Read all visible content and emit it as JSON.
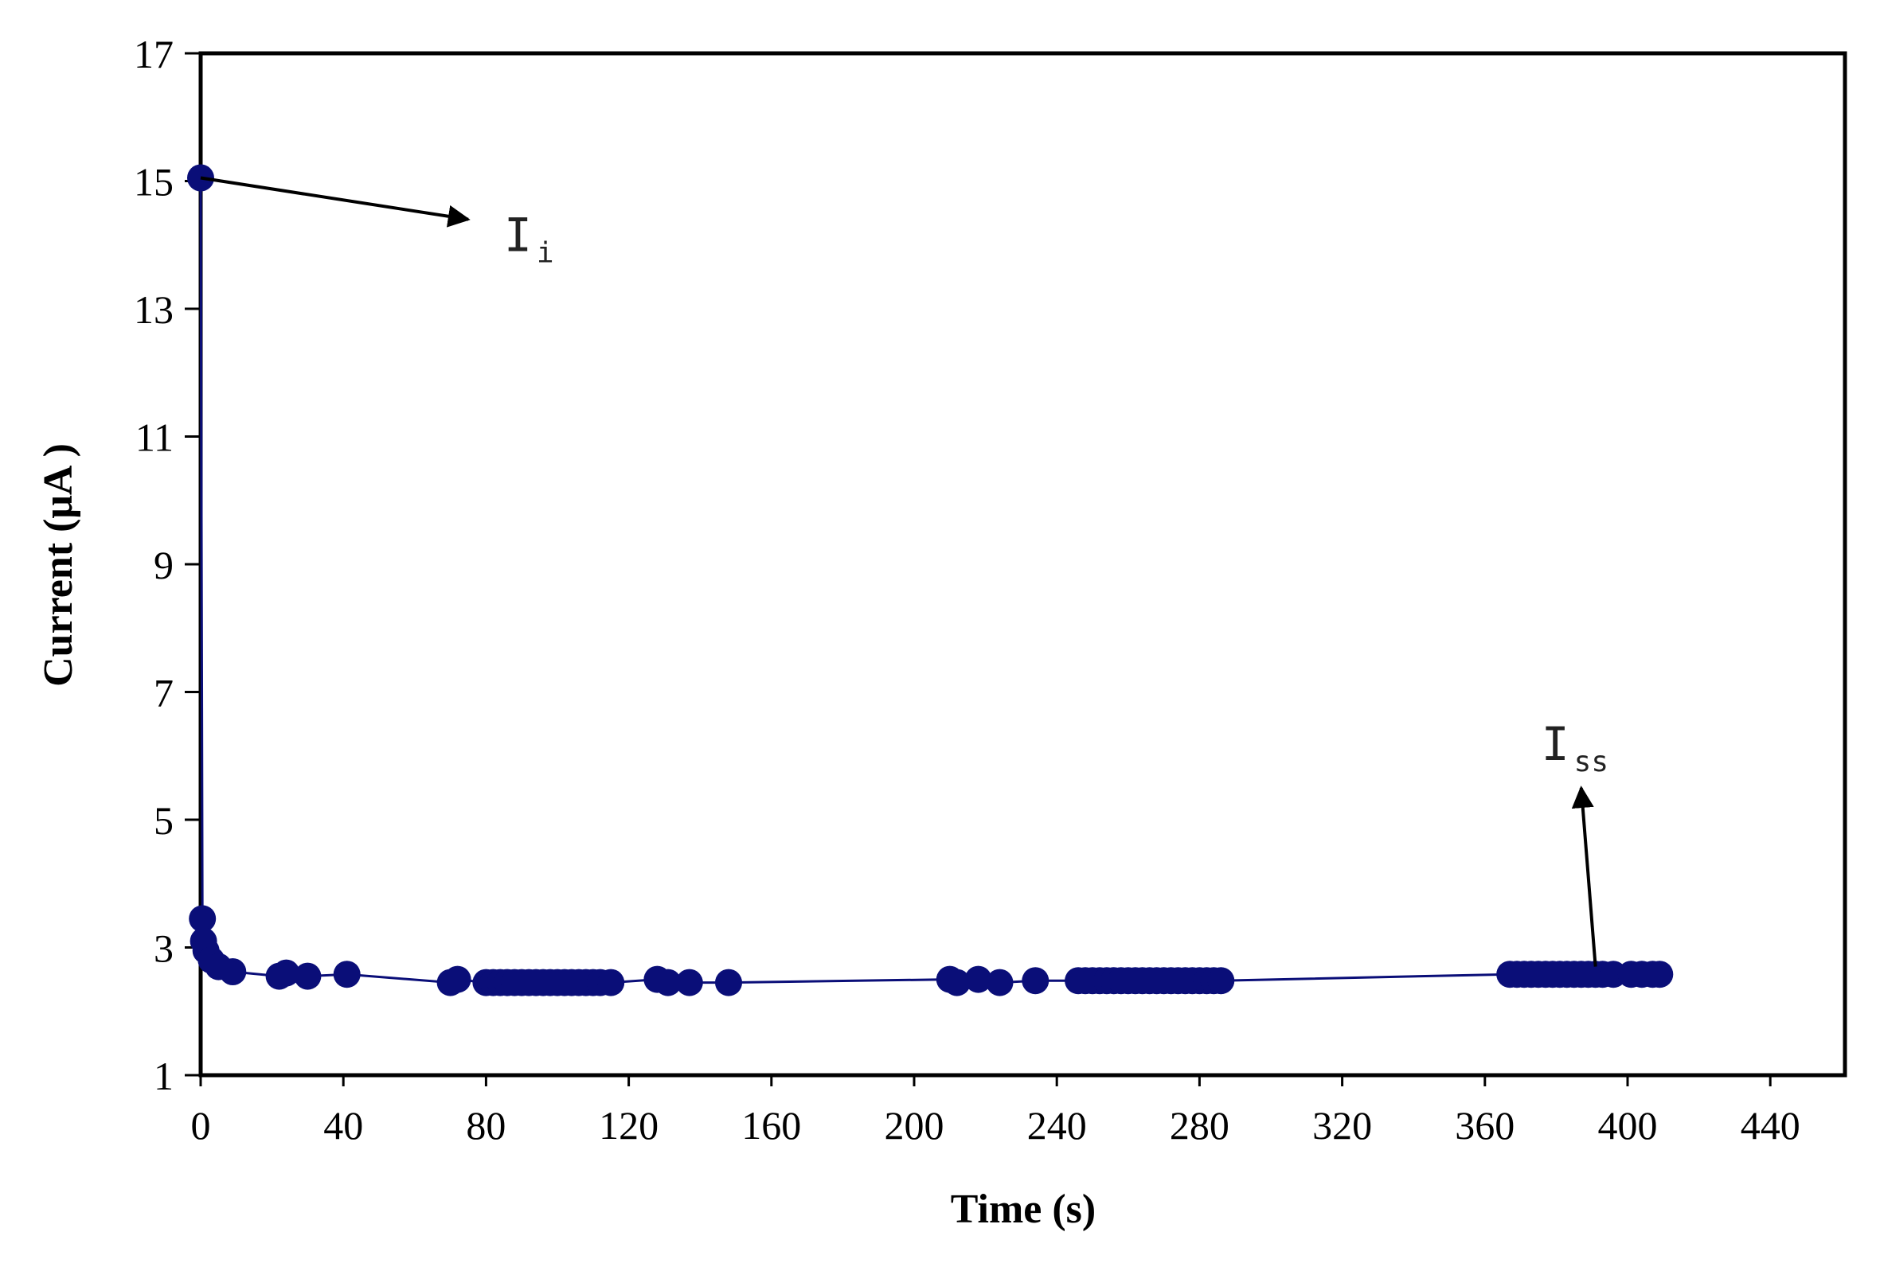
{
  "colors": {
    "series": "#0a0e78",
    "axis": "#000000",
    "background": "#ffffff"
  },
  "chart_data": {
    "type": "scatter",
    "title": "",
    "xlabel": "Time (s)",
    "ylabel": "Current (μA )",
    "xlim": [
      0,
      460
    ],
    "ylim": [
      1,
      17
    ],
    "xticks": [
      0,
      40,
      80,
      120,
      160,
      200,
      240,
      280,
      320,
      360,
      400,
      440
    ],
    "yticks": [
      1,
      3,
      5,
      7,
      9,
      11,
      13,
      15,
      17
    ],
    "xtick_labels": [
      "0",
      "40",
      "80",
      "120",
      "160",
      "200",
      "240",
      "280",
      "320",
      "360",
      "400",
      "440"
    ],
    "ytick_labels": [
      "1",
      "3",
      "5",
      "7",
      "9",
      "11",
      "13",
      "15",
      "17"
    ],
    "grid": false,
    "legend": "none",
    "series": [
      {
        "style": "line-with-markers",
        "points": [
          [
            0,
            15.05
          ],
          [
            0.5,
            3.45
          ],
          [
            0.8,
            3.1
          ],
          [
            1.5,
            2.95
          ],
          [
            3,
            2.8
          ],
          [
            5,
            2.7
          ],
          [
            9,
            2.62
          ],
          [
            22,
            2.55
          ],
          [
            24,
            2.6
          ],
          [
            30,
            2.55
          ],
          [
            41,
            2.58
          ],
          [
            70,
            2.45
          ],
          [
            72,
            2.5
          ],
          [
            80,
            2.45
          ],
          [
            82,
            2.45
          ],
          [
            84,
            2.45
          ],
          [
            86,
            2.45
          ],
          [
            88,
            2.45
          ],
          [
            90,
            2.45
          ],
          [
            92,
            2.45
          ],
          [
            94,
            2.45
          ],
          [
            96,
            2.45
          ],
          [
            98,
            2.45
          ],
          [
            100,
            2.45
          ],
          [
            102,
            2.45
          ],
          [
            104,
            2.45
          ],
          [
            106,
            2.45
          ],
          [
            108,
            2.45
          ],
          [
            110,
            2.45
          ],
          [
            112,
            2.45
          ],
          [
            115,
            2.45
          ],
          [
            128,
            2.5
          ],
          [
            131,
            2.45
          ],
          [
            137,
            2.45
          ],
          [
            148,
            2.45
          ],
          [
            210,
            2.5
          ],
          [
            212,
            2.45
          ],
          [
            218,
            2.5
          ],
          [
            224,
            2.45
          ],
          [
            234,
            2.48
          ],
          [
            246,
            2.48
          ],
          [
            248,
            2.48
          ],
          [
            250,
            2.48
          ],
          [
            252,
            2.48
          ],
          [
            254,
            2.48
          ],
          [
            256,
            2.48
          ],
          [
            258,
            2.48
          ],
          [
            260,
            2.48
          ],
          [
            262,
            2.48
          ],
          [
            264,
            2.48
          ],
          [
            266,
            2.48
          ],
          [
            268,
            2.48
          ],
          [
            270,
            2.48
          ],
          [
            272,
            2.48
          ],
          [
            274,
            2.48
          ],
          [
            276,
            2.48
          ],
          [
            278,
            2.48
          ],
          [
            280,
            2.48
          ],
          [
            282,
            2.48
          ],
          [
            284,
            2.48
          ],
          [
            286,
            2.48
          ],
          [
            367,
            2.58
          ],
          [
            369,
            2.58
          ],
          [
            371,
            2.58
          ],
          [
            373,
            2.58
          ],
          [
            375,
            2.58
          ],
          [
            377,
            2.58
          ],
          [
            379,
            2.58
          ],
          [
            381,
            2.58
          ],
          [
            383,
            2.58
          ],
          [
            385,
            2.58
          ],
          [
            387,
            2.58
          ],
          [
            389,
            2.58
          ],
          [
            391,
            2.58
          ],
          [
            393,
            2.58
          ],
          [
            396,
            2.58
          ],
          [
            401,
            2.58
          ],
          [
            404,
            2.58
          ],
          [
            407,
            2.58
          ],
          [
            409,
            2.58
          ]
        ]
      }
    ],
    "annotations": [
      {
        "main": "I",
        "sub": "i",
        "arrow_from": [
          0,
          15.05
        ],
        "arrow_to": [
          75,
          14.4
        ]
      },
      {
        "main": "I",
        "sub": "ss",
        "arrow_from": [
          391,
          2.7
        ],
        "arrow_to": [
          387,
          5.5
        ]
      }
    ]
  }
}
